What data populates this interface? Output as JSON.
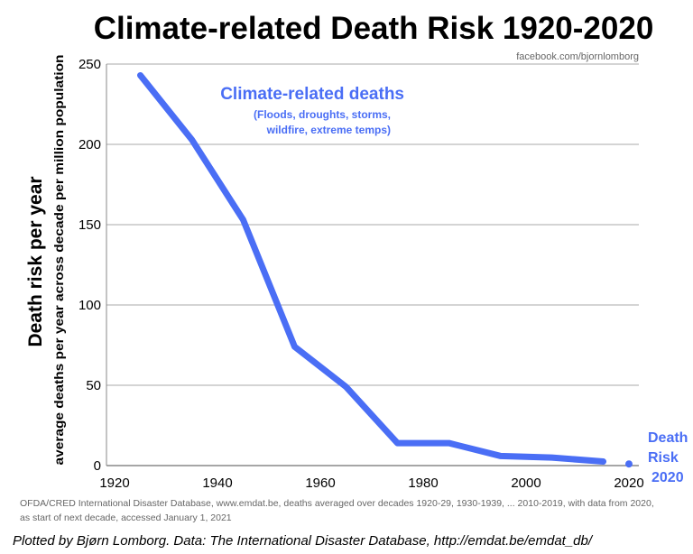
{
  "chart_data": {
    "type": "line",
    "title": "Climate-related Death Risk 1920-2020",
    "watermark": "facebook.com/bjornlomborg",
    "ylabel": "Death risk per year",
    "ylabel_sub": "average deaths per year across decade per million population",
    "xlabel": "",
    "xlim": [
      1920,
      2020
    ],
    "ylim": [
      0,
      250
    ],
    "xticks": [
      1920,
      1940,
      1960,
      1980,
      2000,
      2020
    ],
    "yticks": [
      0,
      50,
      100,
      150,
      200,
      250
    ],
    "grid": "horizontal",
    "series": [
      {
        "name": "Climate-related deaths",
        "subtitle_lines": [
          "(Floods, droughts, storms,",
          "wildfire, extreme temps)"
        ],
        "color": "#4a6ef5",
        "x": [
          1925,
          1935,
          1945,
          1955,
          1965,
          1975,
          1985,
          1995,
          2005,
          2015
        ],
        "y": [
          243,
          203,
          153,
          74,
          49,
          14,
          14,
          6,
          5,
          2.5
        ]
      }
    ],
    "point_annotation": {
      "x": 2020,
      "y": 1,
      "label_lines": [
        "Death",
        "Risk",
        "2020"
      ]
    },
    "source_lines": [
      "OFDA/CRED International Disaster Database, www.emdat.be, deaths averaged over decades 1920-29, 1930-1939, ... 2010-2019, with data from 2020,",
      "as start of next decade, accessed January 1, 2021"
    ],
    "credit": "Plotted by Bjørn Lomborg. Data: The International Disaster Database, http://emdat.be/emdat_db/"
  }
}
